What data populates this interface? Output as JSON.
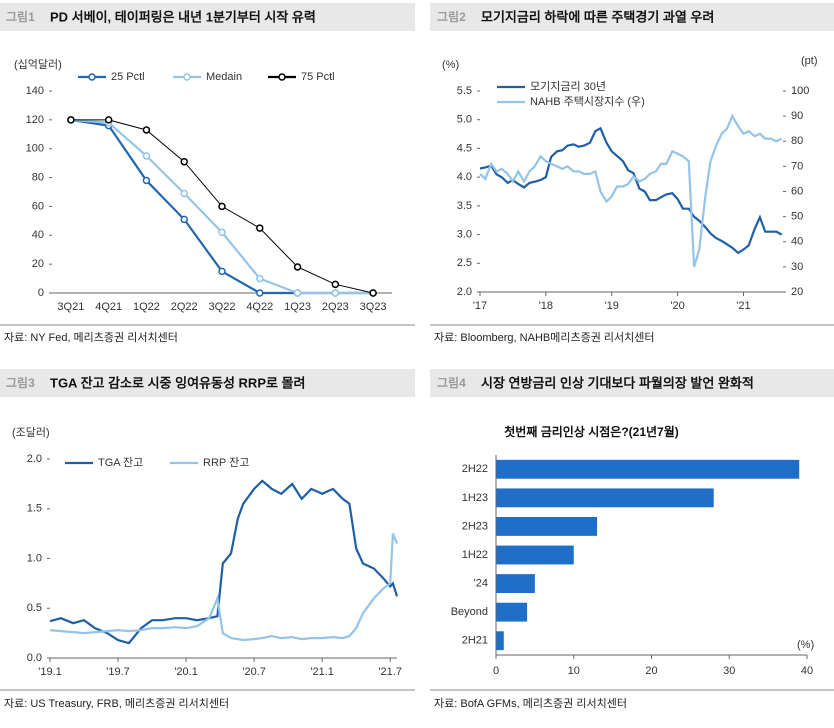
{
  "panels": [
    {
      "label": "그림1",
      "title": "PD 서베이, 테이퍼링은 내년 1분기부터 시작 유력",
      "source": "자료: NY Fed, 메리츠증권 리서치센터"
    },
    {
      "label": "그림2",
      "title": "모기지금리 하락에 따른 주택경기 과열 우려",
      "source": "자료: Bloomberg, NAHB메리츠증권 리서치센터"
    },
    {
      "label": "그림3",
      "title": "TGA 잔고 감소로 시중 잉여유동성 RRP로 몰려",
      "source": "자료: US Treasury, FRB, 메리츠증권 리서치센터"
    },
    {
      "label": "그림4",
      "title": "시장 연방금리 인상 기대보다 파월의장 발언 완화적",
      "source": "자료: BofA GFMs, 메리츠증권 리서치센터"
    }
  ],
  "chart_data": [
    {
      "type": "line",
      "y_label": "(십억달러)",
      "markers": true,
      "categories": [
        "3Q21",
        "4Q21",
        "1Q22",
        "2Q22",
        "3Q22",
        "4Q22",
        "1Q23",
        "2Q23",
        "3Q23"
      ],
      "series": [
        {
          "name": "25 Pctl",
          "color": "#2266b0",
          "values": [
            120,
            116,
            78,
            51,
            15,
            0,
            0,
            0,
            0
          ]
        },
        {
          "name": "Medain",
          "color": "#94c4e8",
          "values": [
            120,
            118,
            95,
            69,
            42,
            10,
            0,
            0,
            0
          ]
        },
        {
          "name": "75 Pctl",
          "color": "#000000",
          "values": [
            120,
            120,
            113,
            91,
            60,
            45,
            18,
            6,
            0
          ]
        }
      ],
      "ylim": [
        0,
        140
      ],
      "yticks": [
        0,
        20,
        40,
        60,
        80,
        100,
        120,
        140
      ]
    },
    {
      "type": "line",
      "y_label": "(%)",
      "y2_label": "(pt)",
      "x": [
        2017.0,
        2017.08,
        2017.17,
        2017.25,
        2017.33,
        2017.42,
        2017.5,
        2017.58,
        2017.67,
        2017.75,
        2017.83,
        2017.92,
        2018.0,
        2018.08,
        2018.17,
        2018.25,
        2018.33,
        2018.42,
        2018.5,
        2018.58,
        2018.67,
        2018.75,
        2018.83,
        2018.92,
        2019.0,
        2019.08,
        2019.17,
        2019.25,
        2019.33,
        2019.42,
        2019.5,
        2019.58,
        2019.67,
        2019.75,
        2019.83,
        2019.92,
        2020.0,
        2020.08,
        2020.17,
        2020.25,
        2020.33,
        2020.42,
        2020.5,
        2020.58,
        2020.67,
        2020.75,
        2020.83,
        2020.92,
        2021.0,
        2021.08,
        2021.17,
        2021.25,
        2021.33,
        2021.42,
        2021.5,
        2021.58
      ],
      "series": [
        {
          "name": "모기지금리 30년",
          "color": "#1f5fa6",
          "values": [
            4.15,
            4.17,
            4.2,
            4.05,
            4.0,
            3.9,
            3.95,
            3.88,
            3.82,
            3.9,
            3.92,
            3.95,
            4.0,
            4.35,
            4.45,
            4.47,
            4.55,
            4.57,
            4.53,
            4.55,
            4.6,
            4.8,
            4.85,
            4.6,
            4.45,
            4.37,
            4.28,
            4.12,
            4.07,
            3.8,
            3.75,
            3.6,
            3.6,
            3.65,
            3.7,
            3.72,
            3.62,
            3.45,
            3.45,
            3.31,
            3.24,
            3.13,
            3.02,
            2.94,
            2.89,
            2.83,
            2.77,
            2.68,
            2.74,
            2.81,
            3.1,
            3.3,
            3.05,
            3.05,
            3.05,
            3.0
          ]
        },
        {
          "name": "NAHB 주택시장지수 (우)",
          "color": "#94c4e8",
          "axis": "y2",
          "values": [
            67,
            65,
            71,
            68,
            69,
            67,
            64,
            68,
            64,
            68,
            70,
            74,
            72,
            71,
            70,
            69,
            70,
            68,
            68,
            67,
            67,
            68,
            60,
            56,
            58,
            62,
            62,
            63,
            66,
            64,
            65,
            67,
            68,
            71,
            71,
            76,
            75,
            74,
            72,
            30,
            37,
            58,
            72,
            78,
            83,
            85,
            90,
            86,
            83,
            84,
            82,
            83,
            81,
            81,
            80,
            81
          ]
        }
      ],
      "xlim": [
        2017,
        2021.6
      ],
      "xticks": [
        {
          "value": 2017,
          "label": "'17"
        },
        {
          "value": 2018,
          "label": "'18"
        },
        {
          "value": 2019,
          "label": "'19"
        },
        {
          "value": 2020,
          "label": "'20"
        },
        {
          "value": 2021,
          "label": "'21"
        }
      ],
      "ylim": [
        2,
        5.5
      ],
      "yticks": [
        {
          "value": 2,
          "label": "2.0"
        },
        2.5,
        {
          "value": 3,
          "label": "3.0"
        },
        3.5,
        {
          "value": 4,
          "label": "4.0"
        },
        4.5,
        {
          "value": 5,
          "label": "5.0"
        },
        5.5
      ],
      "y2lim": [
        20,
        100
      ],
      "y2ticks": [
        20,
        30,
        40,
        50,
        60,
        70,
        80,
        90,
        100
      ]
    },
    {
      "type": "line",
      "y_label": "(조달러)",
      "x": [
        2019.0,
        2019.08,
        2019.17,
        2019.25,
        2019.33,
        2019.42,
        2019.5,
        2019.58,
        2019.67,
        2019.75,
        2019.83,
        2019.92,
        2020.0,
        2020.08,
        2020.17,
        2020.23,
        2020.27,
        2020.33,
        2020.38,
        2020.42,
        2020.5,
        2020.56,
        2020.63,
        2020.7,
        2020.78,
        2020.85,
        2020.92,
        2021.0,
        2021.08,
        2021.15,
        2021.2,
        2021.25,
        2021.3,
        2021.38,
        2021.45,
        2021.5,
        2021.52,
        2021.55
      ],
      "series": [
        {
          "name": "TGA 잔고",
          "color": "#1f5fa6",
          "values": [
            0.37,
            0.4,
            0.35,
            0.38,
            0.3,
            0.25,
            0.18,
            0.15,
            0.3,
            0.38,
            0.38,
            0.4,
            0.4,
            0.38,
            0.4,
            0.42,
            0.95,
            1.05,
            1.4,
            1.55,
            1.7,
            1.78,
            1.7,
            1.65,
            1.75,
            1.6,
            1.7,
            1.65,
            1.7,
            1.6,
            1.55,
            1.1,
            0.95,
            0.9,
            0.8,
            0.72,
            0.75,
            0.62
          ]
        },
        {
          "name": "RRP 잔고",
          "color": "#94c4e8",
          "values": [
            0.28,
            0.27,
            0.26,
            0.25,
            0.26,
            0.27,
            0.28,
            0.27,
            0.28,
            0.3,
            0.3,
            0.31,
            0.3,
            0.32,
            0.4,
            0.6,
            0.25,
            0.2,
            0.19,
            0.18,
            0.19,
            0.2,
            0.22,
            0.2,
            0.21,
            0.19,
            0.2,
            0.2,
            0.21,
            0.2,
            0.22,
            0.3,
            0.45,
            0.6,
            0.7,
            0.75,
            1.25,
            1.15
          ]
        }
      ],
      "xlim": [
        2019,
        2021.55
      ],
      "xticks": [
        {
          "value": 2019,
          "label": "'19.1"
        },
        {
          "value": 2019.5,
          "label": "'19.7"
        },
        {
          "value": 2020,
          "label": "'20.1"
        },
        {
          "value": 2020.5,
          "label": "'20.7"
        },
        {
          "value": 2021,
          "label": "'21.1"
        },
        {
          "value": 2021.5,
          "label": "'21.7"
        }
      ],
      "ylim": [
        0,
        2
      ],
      "yticks": [
        {
          "value": 0,
          "label": "0.0"
        },
        0.5,
        {
          "value": 1,
          "label": "1.0"
        },
        1.5,
        {
          "value": 2,
          "label": "2.0"
        }
      ]
    },
    {
      "type": "hbar",
      "title": "첫번째 금리인상 시점은?(21년7월)",
      "x_label": "(%)",
      "color": "#1f6fc9",
      "categories": [
        "2H22",
        "1H23",
        "2H23",
        "1H22",
        "'24",
        "Beyond",
        "2H21"
      ],
      "values": [
        39,
        28,
        13,
        10,
        5,
        4,
        1
      ],
      "xlim": [
        0,
        40
      ],
      "xticks": [
        0,
        10,
        20,
        30,
        40
      ]
    }
  ]
}
